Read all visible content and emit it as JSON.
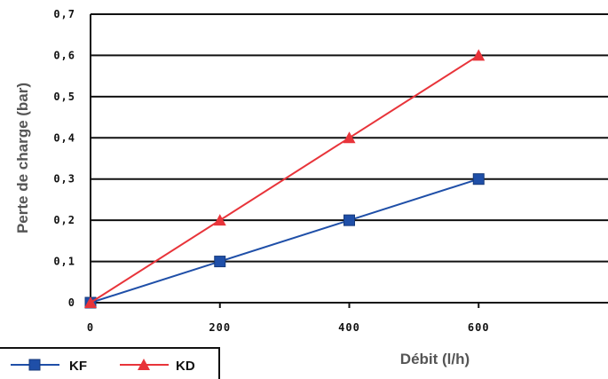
{
  "chart_data": {
    "type": "line",
    "title": "",
    "xlabel": "Débit (l/h)",
    "ylabel": "Perte de charge (bar)",
    "x_ticks": [
      "0",
      "200",
      "400",
      "600"
    ],
    "y_ticks": [
      "0",
      "0,1",
      "0,2",
      "0,3",
      "0,4",
      "0,5",
      "0,6",
      "0,7"
    ],
    "xlim": [
      0,
      800
    ],
    "ylim": [
      0,
      0.7
    ],
    "grid": "horizontal",
    "legend_position": "bottom-left",
    "series": [
      {
        "name": "KF",
        "color": "#1f4fa8",
        "marker": "square",
        "x": [
          0,
          200,
          400,
          600
        ],
        "y": [
          0,
          0.1,
          0.2,
          0.3
        ]
      },
      {
        "name": "KD",
        "color": "#e8343a",
        "marker": "triangle",
        "x": [
          0,
          200,
          400,
          600
        ],
        "y": [
          0,
          0.2,
          0.4,
          0.6
        ]
      }
    ]
  }
}
